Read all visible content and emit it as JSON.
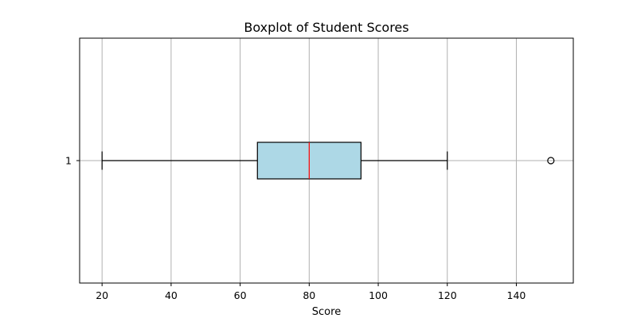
{
  "chart_data": {
    "type": "boxplot",
    "orientation": "horizontal",
    "title": "Boxplot of Student Scores",
    "xlabel": "Score",
    "ylabel": "",
    "xlim": [
      13.5,
      156.5
    ],
    "x_ticks": [
      20,
      40,
      60,
      80,
      100,
      120,
      140
    ],
    "y_ticks": [
      "1"
    ],
    "grid": true,
    "boxes": [
      {
        "label": "1",
        "whisker_low": 20,
        "q1": 65,
        "median": 80,
        "q3": 95,
        "whisker_high": 120,
        "outliers": [
          150
        ]
      }
    ],
    "colors": {
      "box_fill": "#add8e6",
      "box_edge": "#000000",
      "median": "#ff0000",
      "whisker": "#000000",
      "grid": "#b0b0b0",
      "outlier_edge": "#000000"
    }
  }
}
